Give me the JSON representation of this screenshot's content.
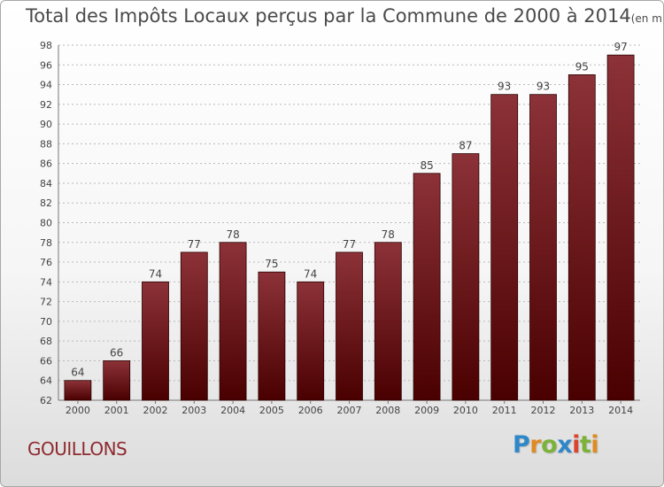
{
  "title": "Total des Impôts Locaux perçus par la Commune de 2000 à 2014",
  "unit": "(en milliers d'€)",
  "commune": "GOUILLONS",
  "brand": {
    "name": "Proxiti",
    "letters": [
      {
        "char": "P",
        "color": "#2f87c8"
      },
      {
        "char": "r",
        "color": "#e08a22"
      },
      {
        "char": "o",
        "color": "#7bb33a"
      },
      {
        "char": "x",
        "color": "#2f87c8"
      },
      {
        "char": "i",
        "color": "#d7462d"
      },
      {
        "char": "t",
        "color": "#7bb33a"
      },
      {
        "char": "i",
        "color": "#e08a22"
      }
    ]
  },
  "colors": {
    "bar_top": "#8c3238",
    "bar_bottom": "#4a0000",
    "bar_stroke": "#2a0000",
    "grid": "#b9b9b9",
    "text": "#444444"
  },
  "chart_data": {
    "type": "bar",
    "title": "Total des Impôts Locaux perçus par la Commune de 2000 à 2014",
    "xlabel": "",
    "ylabel": "",
    "categories": [
      "2000",
      "2001",
      "2002",
      "2003",
      "2004",
      "2005",
      "2006",
      "2007",
      "2008",
      "2009",
      "2010",
      "2011",
      "2012",
      "2013",
      "2014"
    ],
    "values": [
      64,
      66,
      74,
      77,
      78,
      75,
      74,
      77,
      78,
      85,
      87,
      93,
      93,
      95,
      97
    ],
    "ylim": [
      62,
      98
    ],
    "yticks": [
      62,
      64,
      66,
      68,
      70,
      72,
      74,
      76,
      78,
      80,
      82,
      84,
      86,
      88,
      90,
      92,
      94,
      96,
      98
    ],
    "grid": true
  }
}
